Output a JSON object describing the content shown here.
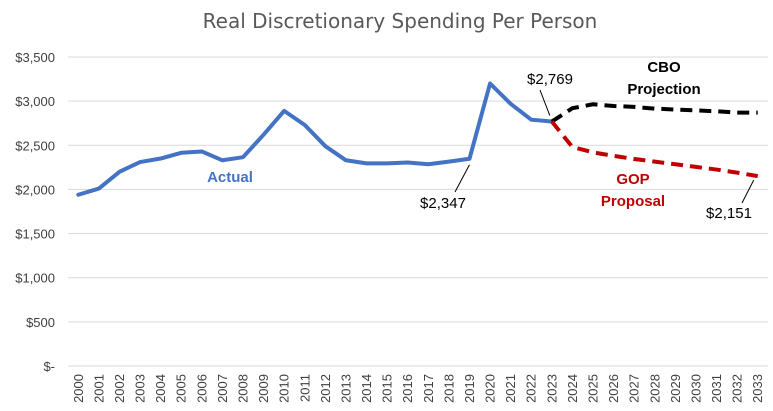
{
  "chart_data": {
    "type": "line",
    "title": "Real Discretionary Spending Per Person",
    "xlabel": "",
    "ylabel": "",
    "ylim": [
      0,
      3500
    ],
    "yticks": [
      0,
      500,
      1000,
      1500,
      2000,
      2500,
      3000,
      3500
    ],
    "ytick_labels": [
      "$-",
      "$500",
      "$1,000",
      "$1,500",
      "$2,000",
      "$2,500",
      "$3,000",
      "$3,500"
    ],
    "x": [
      "2000",
      "2001",
      "2002",
      "2003",
      "2004",
      "2005",
      "2006",
      "2007",
      "2008",
      "2009",
      "2010",
      "2011",
      "2012",
      "2013",
      "2014",
      "2015",
      "2016",
      "2017",
      "2018",
      "2019",
      "2020",
      "2021",
      "2022",
      "2023",
      "2024",
      "2025",
      "2026",
      "2027",
      "2028",
      "2029",
      "2030",
      "2031",
      "2032",
      "2033"
    ],
    "grid": "horizontal",
    "legend": "none",
    "series": [
      {
        "name": "Actual",
        "color": "#4472c4",
        "style": "solid",
        "points": [
          [
            "2000",
            1940
          ],
          [
            "2001",
            2010
          ],
          [
            "2002",
            2200
          ],
          [
            "2003",
            2310
          ],
          [
            "2004",
            2350
          ],
          [
            "2005",
            2415
          ],
          [
            "2006",
            2430
          ],
          [
            "2007",
            2330
          ],
          [
            "2008",
            2365
          ],
          [
            "2009",
            2620
          ],
          [
            "2010",
            2890
          ],
          [
            "2011",
            2730
          ],
          [
            "2012",
            2490
          ],
          [
            "2013",
            2330
          ],
          [
            "2014",
            2295
          ],
          [
            "2015",
            2295
          ],
          [
            "2016",
            2305
          ],
          [
            "2017",
            2285
          ],
          [
            "2018",
            2315
          ],
          [
            "2019",
            2347
          ],
          [
            "2020",
            3200
          ],
          [
            "2021",
            2970
          ],
          [
            "2022",
            2790
          ],
          [
            "2023",
            2769
          ]
        ]
      },
      {
        "name": "CBO Projection",
        "color": "#000000",
        "style": "dashed",
        "points": [
          [
            "2023",
            2769
          ],
          [
            "2024",
            2920
          ],
          [
            "2025",
            2965
          ],
          [
            "2026",
            2945
          ],
          [
            "2027",
            2935
          ],
          [
            "2028",
            2915
          ],
          [
            "2029",
            2905
          ],
          [
            "2030",
            2895
          ],
          [
            "2031",
            2885
          ],
          [
            "2032",
            2870
          ],
          [
            "2033",
            2870
          ]
        ]
      },
      {
        "name": "GOP Proposal",
        "color": "#c00000",
        "style": "dashed",
        "points": [
          [
            "2023",
            2769
          ],
          [
            "2024",
            2480
          ],
          [
            "2025",
            2420
          ],
          [
            "2026",
            2380
          ],
          [
            "2027",
            2345
          ],
          [
            "2028",
            2315
          ],
          [
            "2029",
            2285
          ],
          [
            "2030",
            2255
          ],
          [
            "2031",
            2225
          ],
          [
            "2032",
            2190
          ],
          [
            "2033",
            2151
          ]
        ]
      }
    ],
    "annotations": {
      "actual_label": "Actual",
      "cbo_label_line1": "CBO",
      "cbo_label_line2": "Projection",
      "gop_label_line1": "GOP",
      "gop_label_line2": "Proposal",
      "value_2019": "$2,347",
      "value_2023": "$2,769",
      "value_2033": "$2,151"
    }
  }
}
